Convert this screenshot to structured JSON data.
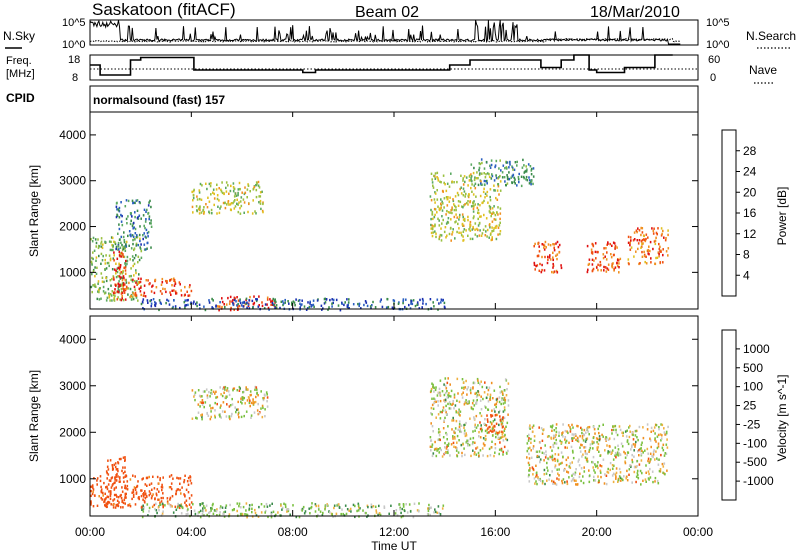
{
  "header": {
    "station": "Saskatoon (fitACF)",
    "beam": "Beam 02",
    "date": "18/Mar/2010"
  },
  "noise_panel": {
    "left_label": "N.Sky",
    "right_label": "N.Search",
    "left_ticks": [
      "10^5",
      "10^0"
    ],
    "right_ticks": [
      "10^5",
      "10^0"
    ]
  },
  "freq_panel": {
    "left_label_1": "Freq.",
    "left_label_2": "[MHz]",
    "right_label": "Nave",
    "left_ticks": [
      "18",
      "8"
    ],
    "right_ticks": [
      "60",
      "0"
    ]
  },
  "cpid": {
    "label": "CPID",
    "value": "normalsound (fast) 157"
  },
  "x_axis": {
    "label": "Time UT",
    "ticks": [
      "00:00",
      "04:00",
      "08:00",
      "12:00",
      "16:00",
      "20:00",
      "00:00"
    ]
  },
  "chart_data": [
    {
      "type": "line",
      "title": "",
      "series": [
        {
          "name": "N.Sky"
        },
        {
          "name": "N.Search"
        }
      ],
      "x_range_hours": [
        0,
        24
      ],
      "y_scale": "log",
      "ylim": [
        "10^0",
        "10^5"
      ]
    },
    {
      "type": "line",
      "series": [
        {
          "name": "Freq.",
          "x_hours": [
            0,
            0.4,
            0.4,
            1.6,
            1.6,
            2.0,
            2.0,
            4.1,
            4.1,
            8.4,
            8.4,
            8.9,
            8.9,
            14.2,
            14.2,
            15.0,
            15.0,
            17.8,
            17.8,
            18.6,
            18.6,
            19.1,
            19.1,
            19.7,
            19.7,
            20.0,
            20.0,
            21.1,
            21.1,
            22.3,
            22.3,
            23.0
          ],
          "y": [
            14,
            14,
            10,
            10,
            16,
            16,
            17,
            17,
            12,
            12,
            11,
            11,
            12,
            12,
            14,
            14,
            16,
            16,
            13,
            13,
            16,
            16,
            18,
            18,
            12,
            12,
            11,
            11,
            13,
            13,
            18,
            18
          ]
        },
        {
          "name": "Nave",
          "style": "dotted",
          "y": 30
        }
      ],
      "ylim": [
        8,
        18
      ],
      "y2lim": [
        0,
        60
      ]
    },
    {
      "type": "heatmap",
      "ylabel": "Slant Range [km]",
      "xlabel": "Time UT",
      "yticks": [
        "1000",
        "2000",
        "3000",
        "4000"
      ],
      "ylim": [
        200,
        4500
      ],
      "colorbar": {
        "label": "Power [dB]",
        "ticks": [
          "4",
          "8",
          "12",
          "16",
          "20",
          "24",
          "28"
        ],
        "range": [
          0,
          30
        ]
      },
      "regions": [
        {
          "t": [
            0.0,
            2.0
          ],
          "r": [
            400,
            1800
          ],
          "level": 0.45
        },
        {
          "t": [
            0.9,
            1.4
          ],
          "r": [
            400,
            1500
          ],
          "level": 0.95
        },
        {
          "t": [
            1.2,
            4.0
          ],
          "r": [
            500,
            900
          ],
          "level": 0.85
        },
        {
          "t": [
            1.0,
            2.4
          ],
          "r": [
            1500,
            2600
          ],
          "level": 0.25
        },
        {
          "t": [
            4.0,
            6.8
          ],
          "r": [
            2300,
            3000
          ],
          "level": 0.55
        },
        {
          "t": [
            5.0,
            7.3
          ],
          "r": [
            200,
            500
          ],
          "level": 0.9
        },
        {
          "t": [
            13.4,
            16.2
          ],
          "r": [
            1700,
            3200
          ],
          "level": 0.55
        },
        {
          "t": [
            15.0,
            17.5
          ],
          "r": [
            2900,
            3500
          ],
          "level": 0.3
        },
        {
          "t": [
            17.5,
            18.6
          ],
          "r": [
            1000,
            1700
          ],
          "level": 0.85
        },
        {
          "t": [
            19.5,
            20.9
          ],
          "r": [
            1000,
            1700
          ],
          "level": 0.85
        },
        {
          "t": [
            21.2,
            22.8
          ],
          "r": [
            1200,
            2000
          ],
          "level": 0.8
        },
        {
          "t": [
            2.0,
            14.0
          ],
          "r": [
            200,
            450
          ],
          "level": 0.15
        }
      ]
    },
    {
      "type": "heatmap",
      "ylabel": "Slant Range [km]",
      "xlabel": "Time UT",
      "yticks": [
        "1000",
        "2000",
        "3000",
        "4000"
      ],
      "ylim": [
        200,
        4500
      ],
      "colorbar": {
        "label": "Velocity [m s^-1]",
        "ticks": [
          "1000",
          "500",
          "100",
          "25",
          "-25",
          "-100",
          "-500",
          "-1000"
        ],
        "range": [
          -1000,
          1000
        ]
      },
      "regions": [
        {
          "t": [
            0.0,
            4.0
          ],
          "r": [
            400,
            1100
          ],
          "level": -200
        },
        {
          "t": [
            0.6,
            1.4
          ],
          "r": [
            400,
            1500
          ],
          "level": -300
        },
        {
          "t": [
            4.0,
            7.0
          ],
          "r": [
            2300,
            3000
          ],
          "level": 0
        },
        {
          "t": [
            13.4,
            16.5
          ],
          "r": [
            1500,
            3200
          ],
          "level": 0
        },
        {
          "t": [
            15.5,
            16.3
          ],
          "r": [
            2000,
            2400
          ],
          "level": -400
        },
        {
          "t": [
            17.2,
            22.8
          ],
          "r": [
            900,
            2200
          ],
          "level": 0
        },
        {
          "t": [
            2.0,
            14.0
          ],
          "r": [
            200,
            500
          ],
          "level": 50
        }
      ]
    }
  ],
  "colors": {
    "axes": "#000000",
    "grid": "#ffffff"
  }
}
